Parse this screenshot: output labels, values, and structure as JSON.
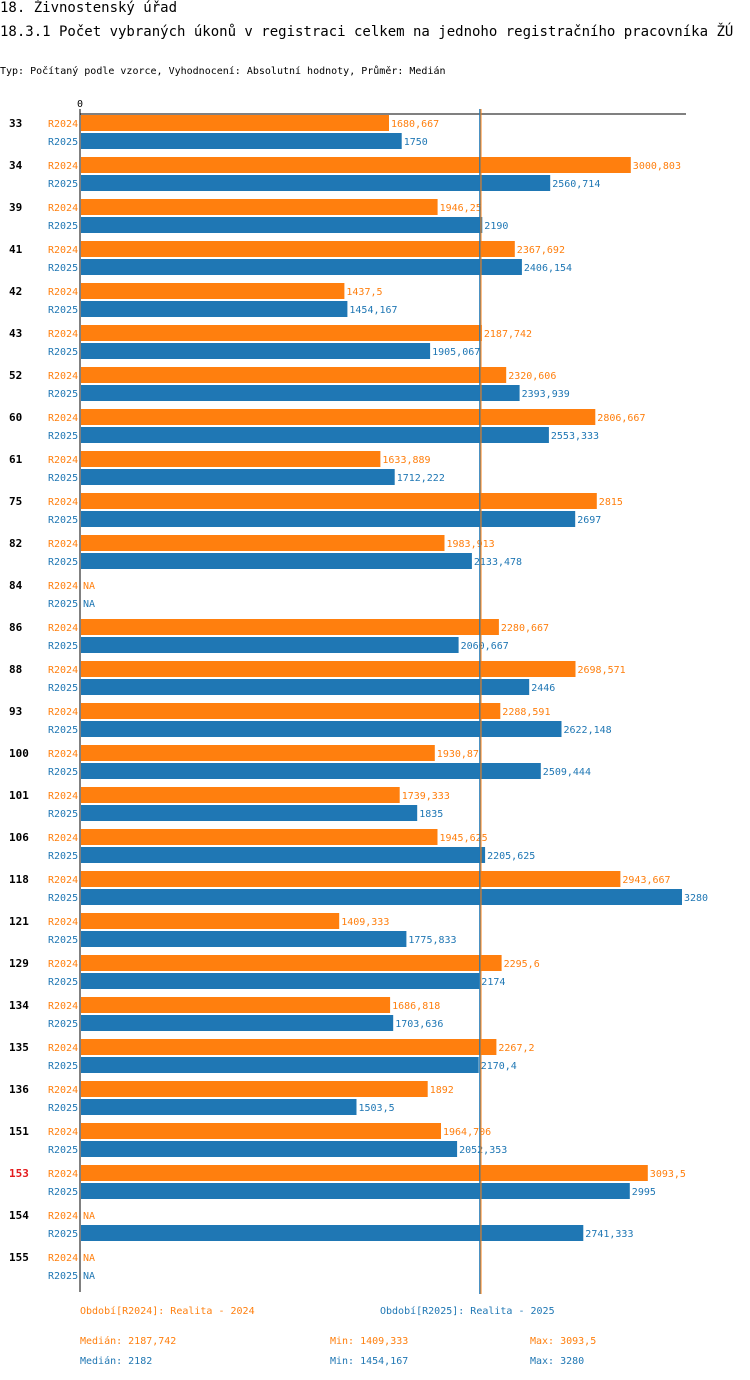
{
  "header": {
    "title": "18. Živnostenský úřad",
    "subtitle": "18.3.1 Počet vybraných úkonů v registraci celkem na jednoho registračního pracovníka ŽÚ",
    "meta": "Typ: Počítaný podle vzorce, Vyhodnocení: Absolutní hodnoty, Průměr: Medián"
  },
  "colors": {
    "r2024": "#ff7f0e",
    "r2025": "#1f77b4",
    "highlight": "#e31a1c",
    "axis": "#000000"
  },
  "chart_data": {
    "type": "bar",
    "orientation": "horizontal",
    "axis_zero_label": "0",
    "xlim": [
      0,
      3400
    ],
    "value_labels_format": "decimal comma",
    "categories": [
      "33",
      "34",
      "39",
      "41",
      "42",
      "43",
      "52",
      "60",
      "61",
      "75",
      "82",
      "84",
      "86",
      "88",
      "93",
      "100",
      "101",
      "106",
      "118",
      "121",
      "129",
      "134",
      "135",
      "136",
      "151",
      "153",
      "154",
      "155"
    ],
    "highlight_category": "153",
    "series": [
      {
        "name": "R2024",
        "values": [
          1680.667,
          3000.803,
          1946.25,
          2367.692,
          1437.5,
          2187.742,
          2320.606,
          2806.667,
          1633.889,
          2815,
          1983.913,
          null,
          2280.667,
          2698.571,
          2288.591,
          1930.87,
          1739.333,
          1945.625,
          2943.667,
          1409.333,
          2295.6,
          1686.818,
          2267.2,
          1892,
          1964.706,
          3093.5,
          null,
          null
        ],
        "labels": [
          "1680,667",
          "3000,803",
          "1946,25",
          "2367,692",
          "1437,5",
          "2187,742",
          "2320,606",
          "2806,667",
          "1633,889",
          "2815",
          "1983,913",
          "NA",
          "2280,667",
          "2698,571",
          "2288,591",
          "1930,87",
          "1739,333",
          "1945,625",
          "2943,667",
          "1409,333",
          "2295,6",
          "1686,818",
          "2267,2",
          "1892",
          "1964,706",
          "3093,5",
          "NA",
          "NA"
        ]
      },
      {
        "name": "R2025",
        "values": [
          1750,
          2560.714,
          2190,
          2406.154,
          1454.167,
          1905.067,
          2393.939,
          2553.333,
          1712.222,
          2697,
          2133.478,
          null,
          2060.667,
          2446,
          2622.148,
          2509.444,
          1835,
          2205.625,
          3280,
          1775.833,
          2174,
          1703.636,
          2170.4,
          1503.5,
          2052.353,
          2995,
          2741.333,
          null
        ],
        "labels": [
          "1750",
          "2560,714",
          "2190",
          "2406,154",
          "1454,167",
          "1905,067",
          "2393,939",
          "2553,333",
          "1712,222",
          "2697",
          "2133,478",
          "NA",
          "2060,667",
          "2446",
          "2622,148",
          "2509,444",
          "1835",
          "2205,625",
          "3280",
          "1775,833",
          "2174",
          "1703,636",
          "2170,4",
          "1503,5",
          "2052,353",
          "2995",
          "2741,333",
          "NA"
        ]
      }
    ],
    "reference_lines": [
      {
        "series": "R2024",
        "value": 2187.742
      },
      {
        "series": "R2025",
        "value": 2182
      }
    ]
  },
  "footer": {
    "period_2024": "Období[R2024]: Realita - 2024",
    "period_2025": "Období[R2025]: Realita - 2025",
    "median_2024": "Medián: 2187,742",
    "min_2024": "Min: 1409,333",
    "max_2024": "Max: 3093,5",
    "median_2025": "Medián: 2182",
    "min_2025": "Min: 1454,167",
    "max_2025": "Max: 3280"
  }
}
